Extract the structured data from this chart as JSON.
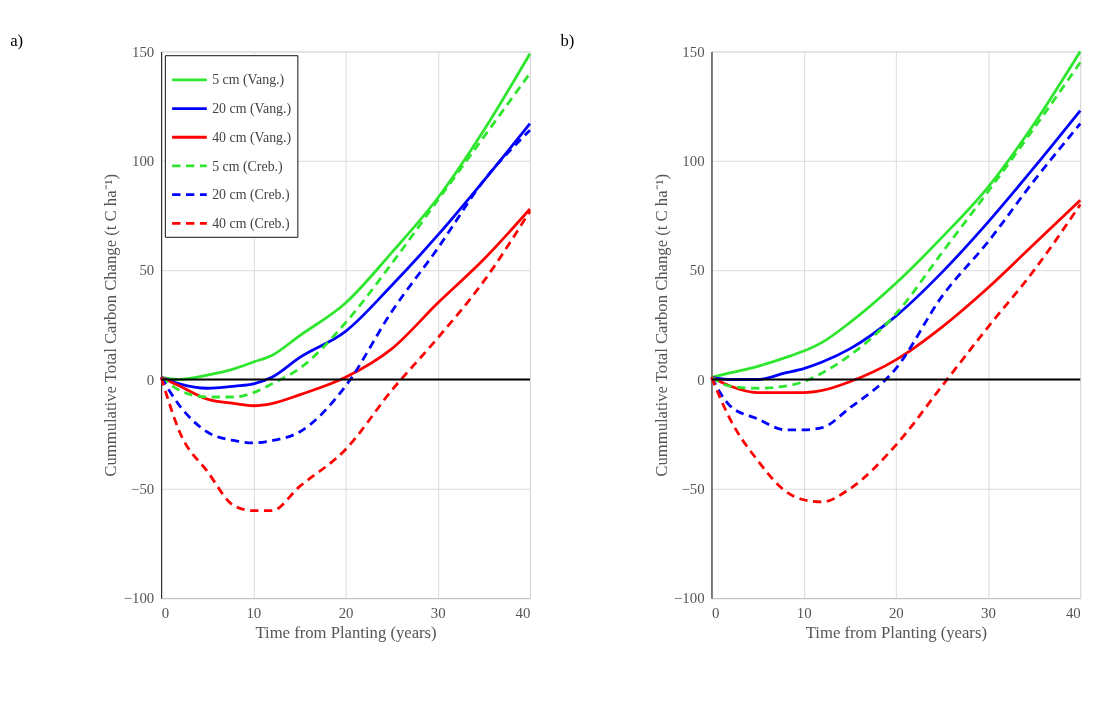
{
  "chart_data": [
    {
      "type": "line",
      "title": "a)",
      "xlabel": "Time from Planting (years)",
      "ylabel": "Cummulative Total Carbon Change (t C ha⁻¹)",
      "x": [
        0,
        2,
        5,
        8,
        10,
        12,
        15,
        20,
        25,
        30,
        35,
        40
      ],
      "xlim": [
        0,
        40
      ],
      "xticks": [
        0,
        10,
        20,
        30,
        40
      ],
      "ylim": [
        -100,
        150
      ],
      "yticks": [
        -100,
        -50,
        0,
        50,
        100,
        150
      ],
      "grid": true,
      "legend": "top left",
      "ref_lines": [
        {
          "axis": "y",
          "value": 0,
          "color": "#000000"
        }
      ],
      "series": [
        {
          "name": "5 cm (Vang.)",
          "color": "#2ee62e",
          "line_style": "solid",
          "values": [
            1,
            0,
            2,
            5,
            8,
            11,
            20,
            35,
            58,
            83,
            114,
            149
          ]
        },
        {
          "name": "20 cm (Vang.)",
          "color": "#0000ff",
          "line_style": "solid",
          "values": [
            1,
            -2,
            -4,
            -3,
            -2,
            1,
            10,
            22,
            43,
            66,
            91,
            117
          ]
        },
        {
          "name": "40 cm (Vang.)",
          "color": "#ff0000",
          "line_style": "solid",
          "values": [
            1,
            -3,
            -9,
            -11,
            -12,
            -11,
            -7,
            1,
            14,
            35,
            55,
            78
          ]
        },
        {
          "name": "5 cm (Creb.)",
          "color": "#2ee62e",
          "line_style": "dashed",
          "values": [
            1,
            -5,
            -8,
            -8,
            -6,
            -2,
            5,
            26,
            53,
            82,
            111,
            140
          ]
        },
        {
          "name": "20 cm (Creb.)",
          "color": "#0000ff",
          "line_style": "dashed",
          "values": [
            1,
            -12,
            -24,
            -28,
            -29,
            -28,
            -24,
            -3,
            31,
            60,
            91,
            114
          ]
        },
        {
          "name": "40 cm (Creb.)",
          "color": "#ff0000",
          "line_style": "dashed",
          "values": [
            1,
            -24,
            -42,
            -58,
            -60,
            -60,
            -49,
            -32,
            -5,
            19,
            45,
            77
          ]
        }
      ]
    },
    {
      "type": "line",
      "title": "b)",
      "xlabel": "Time from Planting (years)",
      "ylabel": "Cummulative Total Carbon Change (t C ha⁻¹)",
      "x": [
        0,
        2,
        5,
        8,
        10,
        12,
        15,
        20,
        25,
        30,
        35,
        40
      ],
      "xlim": [
        0,
        40
      ],
      "xticks": [
        0,
        10,
        20,
        30,
        40
      ],
      "ylim": [
        -100,
        150
      ],
      "yticks": [
        -100,
        -50,
        0,
        50,
        100,
        150
      ],
      "grid": true,
      "legend": "top left",
      "ref_lines": [
        {
          "axis": "y",
          "value": 0,
          "color": "#000000"
        }
      ],
      "series": [
        {
          "name": "5 cm (Vang.)",
          "color": "#2ee62e",
          "line_style": "solid",
          "values": [
            1,
            3,
            6,
            10,
            13,
            17,
            26,
            44,
            65,
            88,
            117,
            150
          ]
        },
        {
          "name": "20 cm (Vang.)",
          "color": "#0000ff",
          "line_style": "solid",
          "values": [
            1,
            0,
            0,
            3,
            5,
            8,
            14,
            29,
            49,
            72,
            97,
            123
          ]
        },
        {
          "name": "40 cm (Vang.)",
          "color": "#ff0000",
          "line_style": "solid",
          "values": [
            1,
            -3,
            -6,
            -6,
            -6,
            -5,
            -1,
            9,
            24,
            42,
            62,
            82
          ]
        },
        {
          "name": "5 cm (Creb.)",
          "color": "#2ee62e",
          "line_style": "dashed",
          "values": [
            1,
            -3,
            -4,
            -3,
            -1,
            3,
            11,
            30,
            58,
            86,
            115,
            145
          ]
        },
        {
          "name": "20 cm (Creb.)",
          "color": "#0000ff",
          "line_style": "dashed",
          "values": [
            1,
            -12,
            -18,
            -23,
            -23,
            -22,
            -13,
            5,
            38,
            63,
            91,
            117
          ]
        },
        {
          "name": "40 cm (Creb.)",
          "color": "#ff0000",
          "line_style": "dashed",
          "values": [
            1,
            -18,
            -37,
            -51,
            -55,
            -56,
            -50,
            -30,
            -3,
            24,
            50,
            80
          ]
        }
      ]
    }
  ]
}
